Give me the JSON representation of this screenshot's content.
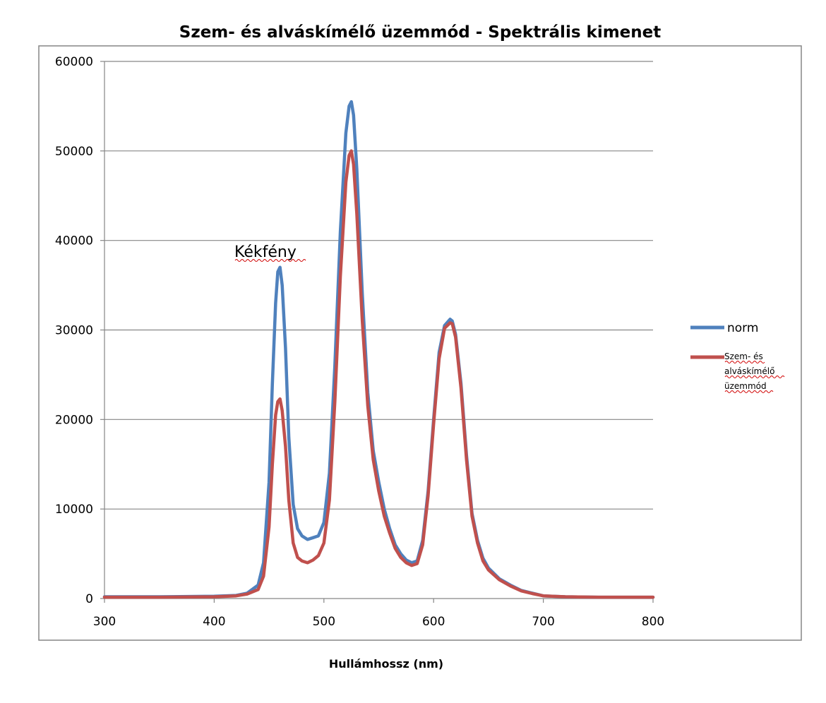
{
  "chart_data": {
    "type": "line",
    "title": "Szem- és alváskímélő üzemmód - Spektrális kimenet",
    "xlabel": "Hullámhossz (nm)",
    "ylabel": "",
    "xlim": [
      300,
      800
    ],
    "ylim": [
      0,
      60000
    ],
    "x_ticks": [
      "300",
      "400",
      "500",
      "600",
      "700",
      "800"
    ],
    "y_ticks": [
      "0",
      "10000",
      "20000",
      "30000",
      "40000",
      "50000",
      "60000"
    ],
    "grid": "horizontal",
    "legend_position": "right",
    "annotation": "Kékfény",
    "series": [
      {
        "name": "norm",
        "color": "#4F81BD",
        "x": [
          300,
          350,
          400,
          420,
          430,
          440,
          445,
          450,
          453,
          456,
          458,
          460,
          462,
          465,
          468,
          472,
          476,
          480,
          485,
          490,
          495,
          500,
          505,
          510,
          515,
          520,
          523,
          525,
          527,
          530,
          535,
          540,
          545,
          550,
          555,
          560,
          565,
          570,
          575,
          580,
          585,
          590,
          595,
          600,
          605,
          610,
          615,
          617,
          620,
          625,
          630,
          635,
          640,
          645,
          650,
          660,
          670,
          680,
          690,
          700,
          720,
          750,
          800
        ],
        "y": [
          200,
          200,
          250,
          350,
          600,
          1500,
          4000,
          13000,
          24000,
          33000,
          36500,
          37000,
          35000,
          28000,
          18000,
          10500,
          7800,
          7000,
          6600,
          6800,
          7000,
          8500,
          14000,
          26000,
          41000,
          52000,
          55000,
          55500,
          54000,
          48000,
          34000,
          23000,
          16500,
          13000,
          10000,
          7800,
          6000,
          5000,
          4300,
          4000,
          4200,
          6500,
          12000,
          20000,
          27500,
          30500,
          31200,
          31000,
          29500,
          24000,
          16000,
          9500,
          6500,
          4500,
          3400,
          2200,
          1500,
          900,
          600,
          300,
          200,
          150,
          150
        ]
      },
      {
        "name": "Szem- és alváskímélő üzemmód",
        "color": "#C0504D",
        "x": [
          300,
          350,
          400,
          420,
          430,
          440,
          445,
          450,
          453,
          456,
          458,
          460,
          462,
          465,
          468,
          472,
          476,
          480,
          485,
          490,
          495,
          500,
          505,
          510,
          515,
          520,
          523,
          525,
          527,
          530,
          535,
          540,
          545,
          550,
          555,
          560,
          565,
          570,
          575,
          580,
          585,
          590,
          595,
          600,
          605,
          610,
          615,
          617,
          620,
          625,
          630,
          635,
          640,
          645,
          650,
          660,
          670,
          680,
          690,
          700,
          720,
          750,
          800
        ],
        "y": [
          150,
          150,
          200,
          300,
          500,
          1000,
          2500,
          8000,
          15000,
          20500,
          22000,
          22300,
          21000,
          17000,
          11000,
          6200,
          4600,
          4200,
          4000,
          4300,
          4800,
          6200,
          11000,
          22000,
          36000,
          46500,
          49500,
          50000,
          48500,
          43000,
          31000,
          21500,
          15500,
          12000,
          9200,
          7300,
          5600,
          4600,
          4000,
          3700,
          3900,
          6000,
          11500,
          19500,
          26800,
          30200,
          30800,
          30700,
          29200,
          23500,
          15500,
          9200,
          6200,
          4200,
          3200,
          2100,
          1400,
          850,
          550,
          300,
          200,
          150,
          150
        ]
      }
    ]
  }
}
